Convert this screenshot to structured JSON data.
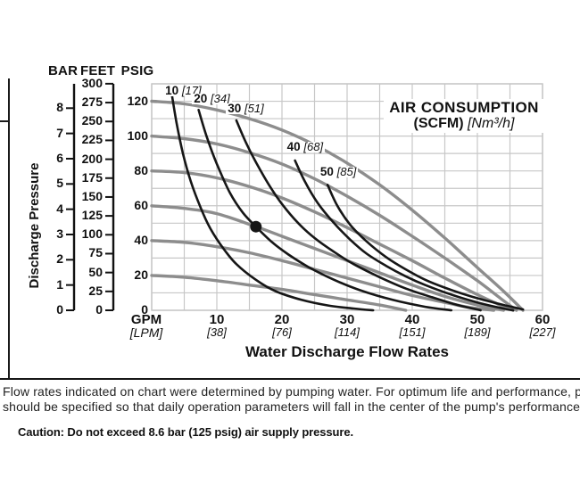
{
  "notes": {
    "line1": "Flow rates indicated on chart were determined by pumping water. For optimum life and performance, pumps",
    "line2": "should be specified so that daily operation parameters will fall in the center of the pump's performance curve",
    "caution": "Caution: Do not exceed 8.6 bar (125 psig) air supply pressure."
  },
  "colors": {
    "grid": "#c7c7c7",
    "performance_curve": "#8d8d8d",
    "air_curve": "#161616",
    "axis_line": "#111111"
  },
  "chart_data": {
    "type": "line",
    "grid": true,
    "title": {
      "line1": "AIR CONSUMPTION",
      "line2_bold": "(SCFM)",
      "line2_italic": "[Nm³/h]"
    },
    "x_axis": {
      "unit_primary": "GPM",
      "unit_secondary": "[LPM]",
      "title": "Water Discharge Flow Rates",
      "range": [
        0,
        60
      ],
      "grid_step": 5,
      "ticks": [
        {
          "gpm": "10",
          "lpm": "[38]",
          "value": 10
        },
        {
          "gpm": "20",
          "lpm": "[76]",
          "value": 20
        },
        {
          "gpm": "30",
          "lpm": "[114]",
          "value": 30
        },
        {
          "gpm": "40",
          "lpm": "[151]",
          "value": 40
        },
        {
          "gpm": "50",
          "lpm": "[189]",
          "value": 50
        },
        {
          "gpm": "60",
          "lpm": "[227]",
          "value": 60
        }
      ]
    },
    "y_axis": {
      "header_bar": "BAR",
      "header_feet": "FEET",
      "header_psig": "PSIG",
      "axis_label": "Discharge Pressure",
      "psig": {
        "range": [
          0,
          130
        ],
        "grid_step": 10,
        "ticks": [
          {
            "label": "120",
            "value": 120
          },
          {
            "label": "100",
            "value": 100
          },
          {
            "label": "80",
            "value": 80
          },
          {
            "label": "60",
            "value": 60
          },
          {
            "label": "40",
            "value": 40
          },
          {
            "label": "20",
            "value": 20
          },
          {
            "label": "0",
            "value": 0
          }
        ]
      },
      "feet": {
        "range": [
          0,
          300
        ],
        "psi_per_unit": 0.43353,
        "ticks": [
          {
            "label": "300",
            "value": 300
          },
          {
            "label": "275",
            "value": 275
          },
          {
            "label": "250",
            "value": 250
          },
          {
            "label": "225",
            "value": 225
          },
          {
            "label": "200",
            "value": 200
          },
          {
            "label": "175",
            "value": 175
          },
          {
            "label": "150",
            "value": 150
          },
          {
            "label": "125",
            "value": 125
          },
          {
            "label": "100",
            "value": 100
          },
          {
            "label": "75",
            "value": 75
          },
          {
            "label": "50",
            "value": 50
          },
          {
            "label": "25",
            "value": 25
          },
          {
            "label": "0",
            "value": 0
          }
        ]
      },
      "bar": {
        "range": [
          0,
          8
        ],
        "psi_per_unit": 14.5038,
        "ticks": [
          {
            "label": "8",
            "value": 8
          },
          {
            "label": "7",
            "value": 7
          },
          {
            "label": "6",
            "value": 6
          },
          {
            "label": "5",
            "value": 5
          },
          {
            "label": "4",
            "value": 4
          },
          {
            "label": "3",
            "value": 3
          },
          {
            "label": "2",
            "value": 2
          },
          {
            "label": "1",
            "value": 1
          },
          {
            "label": "0",
            "value": 0
          }
        ]
      }
    },
    "performance_curves": [
      {
        "name": "120 psig",
        "points": [
          [
            0,
            120
          ],
          [
            5,
            118.5
          ],
          [
            10,
            115
          ],
          [
            15,
            110
          ],
          [
            20,
            103.5
          ],
          [
            25,
            95
          ],
          [
            30,
            84.5
          ],
          [
            35,
            72
          ],
          [
            40,
            57.5
          ],
          [
            45,
            41.5
          ],
          [
            50,
            24.5
          ],
          [
            54,
            11
          ],
          [
            57,
            0
          ]
        ]
      },
      {
        "name": "100 psig",
        "points": [
          [
            0,
            100
          ],
          [
            5,
            98.5
          ],
          [
            10,
            95.5
          ],
          [
            15,
            90.5
          ],
          [
            20,
            84
          ],
          [
            25,
            75.5
          ],
          [
            30,
            65.5
          ],
          [
            35,
            54.5
          ],
          [
            40,
            42.5
          ],
          [
            45,
            30
          ],
          [
            50,
            17
          ],
          [
            53.5,
            7
          ],
          [
            56,
            0
          ]
        ]
      },
      {
        "name": "80 psig",
        "points": [
          [
            0,
            80
          ],
          [
            5,
            79
          ],
          [
            10,
            76
          ],
          [
            15,
            71
          ],
          [
            20,
            64.5
          ],
          [
            25,
            56.5
          ],
          [
            30,
            47.5
          ],
          [
            35,
            38
          ],
          [
            40,
            28.5
          ],
          [
            45,
            18.5
          ],
          [
            50,
            9
          ],
          [
            53.5,
            3
          ],
          [
            55.5,
            0
          ]
        ]
      },
      {
        "name": "60 psig",
        "points": [
          [
            0,
            60
          ],
          [
            5,
            58.5
          ],
          [
            10,
            55.5
          ],
          [
            16,
            48
          ],
          [
            20,
            42.5
          ],
          [
            25,
            35.5
          ],
          [
            30,
            28.5
          ],
          [
            35,
            21.5
          ],
          [
            40,
            14.5
          ],
          [
            45,
            8
          ],
          [
            50,
            3
          ],
          [
            54,
            0
          ]
        ]
      },
      {
        "name": "40 psig",
        "points": [
          [
            0,
            40
          ],
          [
            5,
            39
          ],
          [
            10,
            36.5
          ],
          [
            15,
            33
          ],
          [
            20,
            28.5
          ],
          [
            25,
            23.5
          ],
          [
            30,
            18.5
          ],
          [
            35,
            13.5
          ],
          [
            40,
            8.5
          ],
          [
            45,
            4.5
          ],
          [
            49,
            1.5
          ],
          [
            52.5,
            0
          ]
        ]
      },
      {
        "name": "20 psig",
        "points": [
          [
            0,
            20
          ],
          [
            5,
            19
          ],
          [
            10,
            17
          ],
          [
            15,
            14.5
          ],
          [
            20,
            12
          ],
          [
            25,
            9
          ],
          [
            30,
            6
          ],
          [
            35,
            3
          ],
          [
            39,
            0
          ]
        ]
      }
    ],
    "air_curves": [
      {
        "label": "10",
        "label_alt": "[17]",
        "label_anchor": [
          1.8,
          129
        ],
        "points": [
          [
            3,
            126
          ],
          [
            3.8,
            108
          ],
          [
            4.8,
            90
          ],
          [
            6,
            74
          ],
          [
            7.5,
            59
          ],
          [
            9,
            47
          ],
          [
            11,
            35.5
          ],
          [
            13,
            26.5
          ],
          [
            16,
            17.5
          ],
          [
            19,
            11
          ],
          [
            23,
            6
          ],
          [
            27,
            2.8
          ],
          [
            31,
            1
          ],
          [
            34,
            0
          ]
        ]
      },
      {
        "label": "20",
        "label_alt": "[34]",
        "label_anchor": [
          6.2,
          124.5
        ],
        "points": [
          [
            7.2,
            115
          ],
          [
            8.5,
            99
          ],
          [
            10,
            84
          ],
          [
            12,
            67.5
          ],
          [
            14,
            56
          ],
          [
            16,
            48
          ],
          [
            18.5,
            39
          ],
          [
            21,
            32
          ],
          [
            24,
            25
          ],
          [
            28,
            17.5
          ],
          [
            32,
            11.5
          ],
          [
            37,
            6
          ],
          [
            42,
            2
          ],
          [
            46,
            0
          ]
        ]
      },
      {
        "label": "30",
        "label_alt": "[51]",
        "label_anchor": [
          11.4,
          118.5
        ],
        "points": [
          [
            13,
            109
          ],
          [
            14.5,
            96
          ],
          [
            16,
            85
          ],
          [
            18,
            72
          ],
          [
            20,
            61
          ],
          [
            22.5,
            50
          ],
          [
            25,
            41.5
          ],
          [
            28,
            33.5
          ],
          [
            31,
            26.5
          ],
          [
            35,
            19
          ],
          [
            39,
            12.5
          ],
          [
            43,
            7.5
          ],
          [
            47,
            3
          ],
          [
            50.5,
            0
          ]
        ]
      },
      {
        "label": "40",
        "label_alt": "[68]",
        "label_anchor": [
          20.5,
          96.5
        ],
        "points": [
          [
            22,
            86
          ],
          [
            23.5,
            74
          ],
          [
            25.5,
            61.5
          ],
          [
            28,
            50
          ],
          [
            30.5,
            40.5
          ],
          [
            33,
            32.5
          ],
          [
            36,
            25.5
          ],
          [
            39,
            19.5
          ],
          [
            42,
            14.5
          ],
          [
            46,
            9
          ],
          [
            50,
            4.5
          ],
          [
            54,
            1
          ],
          [
            55.5,
            0
          ]
        ]
      },
      {
        "label": "50",
        "label_alt": "[85]",
        "label_anchor": [
          25.6,
          82.5
        ],
        "points": [
          [
            27,
            72
          ],
          [
            28.5,
            60
          ],
          [
            30.5,
            49
          ],
          [
            33,
            39.5
          ],
          [
            36,
            30.5
          ],
          [
            39,
            23.5
          ],
          [
            42,
            17.5
          ],
          [
            45,
            13
          ],
          [
            49,
            8
          ],
          [
            53,
            4
          ],
          [
            57,
            0.5
          ]
        ]
      }
    ],
    "operating_point": {
      "gpm": 16,
      "psig": 48
    }
  }
}
